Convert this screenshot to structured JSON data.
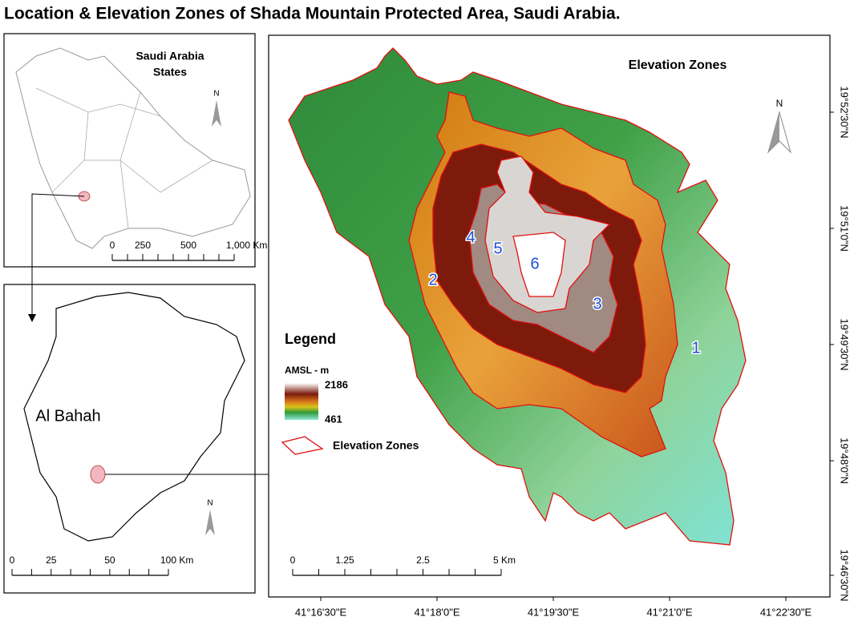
{
  "title": "Location & Elevation Zones of Shada Mountain Protected Area, Saudi Arabia.",
  "saudi_inset": {
    "title_lines": [
      "Saudi Arabia",
      "States"
    ],
    "north": "N",
    "scale_labels": [
      "0",
      "250",
      "500",
      "1,000 Km"
    ]
  },
  "bahah_inset": {
    "label": "Al Bahah",
    "north": "N",
    "scale_labels": [
      "0",
      "25",
      "50",
      "100 Km"
    ]
  },
  "main_map": {
    "title": "Elevation Zones",
    "north": "N",
    "zone_labels": [
      "1",
      "2",
      "3",
      "4",
      "5",
      "6"
    ],
    "legend": {
      "title": "Legend",
      "ramp_title": "AMSL - m",
      "ramp_max": "2186",
      "ramp_min": "461",
      "zones_label": "Elevation Zones"
    },
    "scale_labels": [
      "0",
      "1.25",
      "2.5",
      "5 Km"
    ],
    "x_labels": [
      "41°16'30\"E",
      "41°18'0\"E",
      "41°19'30\"E",
      "41°21'0\"E",
      "41°22'30\"E"
    ],
    "y_labels": [
      "19°52'30\"N",
      "19°51'0\"N",
      "19°49'30\"N",
      "19°48'0\"N",
      "19°46'30\"N"
    ]
  }
}
